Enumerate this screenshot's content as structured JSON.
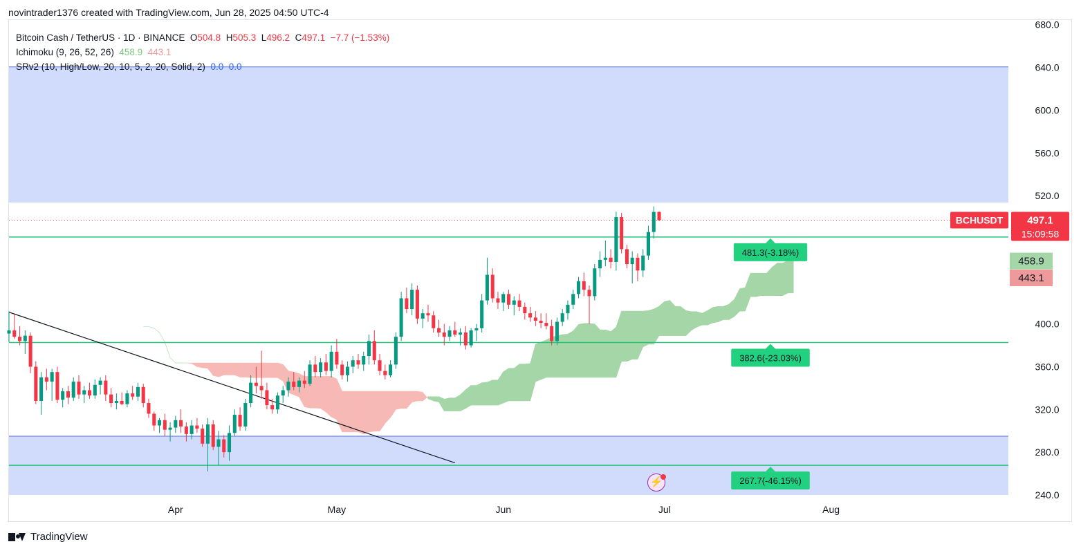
{
  "header": {
    "text": "novintrader1376 created with TradingView.com, Jun 28, 2025 04:50 UTC-4"
  },
  "legend": {
    "symbol": "Bitcoin Cash / TetherUS · 1D · BINANCE",
    "o_label": "O",
    "o": "504.8",
    "h_label": "H",
    "h": "505.3",
    "l_label": "L",
    "l": "496.2",
    "c_label": "C",
    "c": "497.1",
    "change": "−7.7 (−1.53%)",
    "ichimoku_name": "Ichimoku (9, 26, 52, 26)",
    "ichimoku_a": "458.9",
    "ichimoku_b": "443.1",
    "srv2_name": "SRv2 (10, High/Low, 20, 10, 5, 2, 20, Solid, 2)",
    "srv2_a": "0.0",
    "srv2_b": "0.0"
  },
  "footer": {
    "brand": "TradingView"
  },
  "colors": {
    "up": "#089981",
    "down": "#f23645",
    "zone": "#d1dcfd",
    "zone_line": "#5b73d6",
    "level": "#22c77a",
    "cloud_up": "#a5d6a7",
    "cloud_down": "#f7b9b5",
    "trend": "#131722"
  },
  "chart_data": {
    "type": "candlestick",
    "symbol_tag": "BCHUSDT",
    "last_price": "497.1",
    "countdown": "15:09:58",
    "ichimoku_tag_a": "458.9",
    "ichimoku_tag_b": "443.1",
    "ylim": [
      240,
      685
    ],
    "y_ticks": [
      "680.0",
      "640.0",
      "600.0",
      "560.0",
      "520.0",
      "400.0",
      "360.0",
      "320.0",
      "280.0",
      "240.0"
    ],
    "x_ticks": [
      {
        "label": "Apr",
        "date": "2025-04-01"
      },
      {
        "label": "May",
        "date": "2025-05-01"
      },
      {
        "label": "Jun",
        "date": "2025-06-01"
      },
      {
        "label": "Jul",
        "date": "2025-07-01"
      },
      {
        "label": "Aug",
        "date": "2025-08-01"
      }
    ],
    "x_range": [
      "2025-03-01",
      "2025-09-03"
    ],
    "zones": [
      {
        "from": 513.5,
        "to": 640.5
      },
      {
        "from": 240,
        "to": 295
      }
    ],
    "levels": [
      {
        "price": 481.3,
        "label": "481.3(-3.18%)"
      },
      {
        "price": 382.6,
        "label": "382.6(-23.03%)"
      },
      {
        "price": 267.7,
        "label": "267.7(-46.15%)"
      }
    ],
    "trendline": [
      {
        "date": "2025-03-01",
        "price": 411
      },
      {
        "date": "2025-05-23",
        "price": 270
      }
    ],
    "candles": [
      {
        "date": "2025-03-01",
        "o": 391,
        "h": 412,
        "l": 383,
        "c": 394
      },
      {
        "date": "2025-03-02",
        "o": 394,
        "h": 410,
        "l": 386,
        "c": 388
      },
      {
        "date": "2025-03-03",
        "o": 388,
        "h": 398,
        "l": 380,
        "c": 384
      },
      {
        "date": "2025-03-04",
        "o": 384,
        "h": 394,
        "l": 372,
        "c": 389
      },
      {
        "date": "2025-03-05",
        "o": 389,
        "h": 392,
        "l": 354,
        "c": 360
      },
      {
        "date": "2025-03-06",
        "o": 360,
        "h": 365,
        "l": 325,
        "c": 328
      },
      {
        "date": "2025-03-07",
        "o": 328,
        "h": 355,
        "l": 315,
        "c": 350
      },
      {
        "date": "2025-03-08",
        "o": 350,
        "h": 358,
        "l": 338,
        "c": 346
      },
      {
        "date": "2025-03-09",
        "o": 346,
        "h": 358,
        "l": 328,
        "c": 355
      },
      {
        "date": "2025-03-10",
        "o": 355,
        "h": 360,
        "l": 326,
        "c": 329
      },
      {
        "date": "2025-03-11",
        "o": 329,
        "h": 340,
        "l": 322,
        "c": 337
      },
      {
        "date": "2025-03-12",
        "o": 337,
        "h": 342,
        "l": 325,
        "c": 331
      },
      {
        "date": "2025-03-13",
        "o": 331,
        "h": 350,
        "l": 328,
        "c": 346
      },
      {
        "date": "2025-03-14",
        "o": 346,
        "h": 352,
        "l": 330,
        "c": 334
      },
      {
        "date": "2025-03-15",
        "o": 334,
        "h": 342,
        "l": 326,
        "c": 338
      },
      {
        "date": "2025-03-16",
        "o": 338,
        "h": 345,
        "l": 330,
        "c": 333
      },
      {
        "date": "2025-03-17",
        "o": 333,
        "h": 348,
        "l": 330,
        "c": 343
      },
      {
        "date": "2025-03-18",
        "o": 343,
        "h": 350,
        "l": 334,
        "c": 347
      },
      {
        "date": "2025-03-19",
        "o": 347,
        "h": 352,
        "l": 328,
        "c": 334
      },
      {
        "date": "2025-03-20",
        "o": 334,
        "h": 340,
        "l": 322,
        "c": 326
      },
      {
        "date": "2025-03-21",
        "o": 326,
        "h": 335,
        "l": 320,
        "c": 328
      },
      {
        "date": "2025-03-22",
        "o": 328,
        "h": 336,
        "l": 324,
        "c": 325
      },
      {
        "date": "2025-03-23",
        "o": 325,
        "h": 338,
        "l": 322,
        "c": 335
      },
      {
        "date": "2025-03-24",
        "o": 335,
        "h": 342,
        "l": 329,
        "c": 332
      },
      {
        "date": "2025-03-25",
        "o": 332,
        "h": 345,
        "l": 328,
        "c": 341
      },
      {
        "date": "2025-03-26",
        "o": 341,
        "h": 344,
        "l": 322,
        "c": 326
      },
      {
        "date": "2025-03-27",
        "o": 326,
        "h": 330,
        "l": 312,
        "c": 316
      },
      {
        "date": "2025-03-28",
        "o": 316,
        "h": 318,
        "l": 300,
        "c": 305
      },
      {
        "date": "2025-03-29",
        "o": 305,
        "h": 312,
        "l": 298,
        "c": 310
      },
      {
        "date": "2025-03-30",
        "o": 310,
        "h": 316,
        "l": 295,
        "c": 301
      },
      {
        "date": "2025-03-31",
        "o": 301,
        "h": 308,
        "l": 290,
        "c": 303
      },
      {
        "date": "2025-04-01",
        "o": 303,
        "h": 314,
        "l": 298,
        "c": 310
      },
      {
        "date": "2025-04-02",
        "o": 310,
        "h": 320,
        "l": 298,
        "c": 304
      },
      {
        "date": "2025-04-03",
        "o": 304,
        "h": 308,
        "l": 290,
        "c": 297
      },
      {
        "date": "2025-04-04",
        "o": 297,
        "h": 310,
        "l": 292,
        "c": 305
      },
      {
        "date": "2025-04-05",
        "o": 305,
        "h": 312,
        "l": 298,
        "c": 302
      },
      {
        "date": "2025-04-06",
        "o": 302,
        "h": 306,
        "l": 285,
        "c": 288
      },
      {
        "date": "2025-04-07",
        "o": 288,
        "h": 312,
        "l": 262,
        "c": 306
      },
      {
        "date": "2025-04-08",
        "o": 306,
        "h": 310,
        "l": 282,
        "c": 285
      },
      {
        "date": "2025-04-09",
        "o": 285,
        "h": 300,
        "l": 268,
        "c": 292
      },
      {
        "date": "2025-04-10",
        "o": 292,
        "h": 296,
        "l": 275,
        "c": 280
      },
      {
        "date": "2025-04-11",
        "o": 280,
        "h": 305,
        "l": 272,
        "c": 298
      },
      {
        "date": "2025-04-12",
        "o": 298,
        "h": 320,
        "l": 295,
        "c": 315
      },
      {
        "date": "2025-04-13",
        "o": 315,
        "h": 322,
        "l": 300,
        "c": 304
      },
      {
        "date": "2025-04-14",
        "o": 304,
        "h": 330,
        "l": 300,
        "c": 326
      },
      {
        "date": "2025-04-15",
        "o": 326,
        "h": 352,
        "l": 322,
        "c": 345
      },
      {
        "date": "2025-04-16",
        "o": 345,
        "h": 360,
        "l": 335,
        "c": 342
      },
      {
        "date": "2025-04-17",
        "o": 342,
        "h": 375,
        "l": 330,
        "c": 338
      },
      {
        "date": "2025-04-18",
        "o": 338,
        "h": 345,
        "l": 320,
        "c": 324
      },
      {
        "date": "2025-04-19",
        "o": 324,
        "h": 330,
        "l": 316,
        "c": 320
      },
      {
        "date": "2025-04-20",
        "o": 320,
        "h": 336,
        "l": 316,
        "c": 333
      },
      {
        "date": "2025-04-21",
        "o": 333,
        "h": 342,
        "l": 326,
        "c": 338
      },
      {
        "date": "2025-04-22",
        "o": 338,
        "h": 350,
        "l": 332,
        "c": 346
      },
      {
        "date": "2025-04-23",
        "o": 346,
        "h": 355,
        "l": 338,
        "c": 341
      },
      {
        "date": "2025-04-24",
        "o": 341,
        "h": 350,
        "l": 336,
        "c": 347
      },
      {
        "date": "2025-04-25",
        "o": 347,
        "h": 356,
        "l": 340,
        "c": 344
      },
      {
        "date": "2025-04-26",
        "o": 344,
        "h": 366,
        "l": 342,
        "c": 362
      },
      {
        "date": "2025-04-27",
        "o": 362,
        "h": 370,
        "l": 350,
        "c": 355
      },
      {
        "date": "2025-04-28",
        "o": 355,
        "h": 368,
        "l": 350,
        "c": 364
      },
      {
        "date": "2025-04-29",
        "o": 364,
        "h": 372,
        "l": 352,
        "c": 356
      },
      {
        "date": "2025-04-30",
        "o": 356,
        "h": 380,
        "l": 350,
        "c": 374
      },
      {
        "date": "2025-05-01",
        "o": 374,
        "h": 386,
        "l": 358,
        "c": 362
      },
      {
        "date": "2025-05-02",
        "o": 362,
        "h": 366,
        "l": 348,
        "c": 352
      },
      {
        "date": "2025-05-03",
        "o": 352,
        "h": 365,
        "l": 346,
        "c": 360
      },
      {
        "date": "2025-05-04",
        "o": 360,
        "h": 370,
        "l": 354,
        "c": 366
      },
      {
        "date": "2025-05-05",
        "o": 366,
        "h": 372,
        "l": 358,
        "c": 362
      },
      {
        "date": "2025-05-06",
        "o": 362,
        "h": 374,
        "l": 356,
        "c": 370
      },
      {
        "date": "2025-05-07",
        "o": 370,
        "h": 390,
        "l": 362,
        "c": 384
      },
      {
        "date": "2025-05-08",
        "o": 384,
        "h": 394,
        "l": 362,
        "c": 366
      },
      {
        "date": "2025-05-09",
        "o": 366,
        "h": 372,
        "l": 352,
        "c": 356
      },
      {
        "date": "2025-05-10",
        "o": 356,
        "h": 362,
        "l": 348,
        "c": 352
      },
      {
        "date": "2025-05-11",
        "o": 352,
        "h": 366,
        "l": 350,
        "c": 362
      },
      {
        "date": "2025-05-12",
        "o": 362,
        "h": 392,
        "l": 358,
        "c": 388
      },
      {
        "date": "2025-05-13",
        "o": 388,
        "h": 430,
        "l": 384,
        "c": 424
      },
      {
        "date": "2025-05-14",
        "o": 424,
        "h": 434,
        "l": 410,
        "c": 414
      },
      {
        "date": "2025-05-15",
        "o": 414,
        "h": 438,
        "l": 408,
        "c": 432
      },
      {
        "date": "2025-05-16",
        "o": 432,
        "h": 436,
        "l": 400,
        "c": 405
      },
      {
        "date": "2025-05-17",
        "o": 405,
        "h": 414,
        "l": 396,
        "c": 410
      },
      {
        "date": "2025-05-18",
        "o": 410,
        "h": 418,
        "l": 402,
        "c": 408
      },
      {
        "date": "2025-05-19",
        "o": 408,
        "h": 412,
        "l": 392,
        "c": 396
      },
      {
        "date": "2025-05-20",
        "o": 396,
        "h": 404,
        "l": 388,
        "c": 392
      },
      {
        "date": "2025-05-21",
        "o": 392,
        "h": 400,
        "l": 380,
        "c": 388
      },
      {
        "date": "2025-05-22",
        "o": 388,
        "h": 398,
        "l": 384,
        "c": 394
      },
      {
        "date": "2025-05-23",
        "o": 394,
        "h": 402,
        "l": 388,
        "c": 390
      },
      {
        "date": "2025-05-24",
        "o": 390,
        "h": 396,
        "l": 380,
        "c": 392
      },
      {
        "date": "2025-05-25",
        "o": 392,
        "h": 398,
        "l": 376,
        "c": 380
      },
      {
        "date": "2025-05-26",
        "o": 380,
        "h": 396,
        "l": 378,
        "c": 394
      },
      {
        "date": "2025-05-27",
        "o": 394,
        "h": 400,
        "l": 384,
        "c": 396
      },
      {
        "date": "2025-05-28",
        "o": 396,
        "h": 428,
        "l": 392,
        "c": 422
      },
      {
        "date": "2025-05-29",
        "o": 422,
        "h": 462,
        "l": 418,
        "c": 446
      },
      {
        "date": "2025-05-30",
        "o": 446,
        "h": 452,
        "l": 420,
        "c": 424
      },
      {
        "date": "2025-05-31",
        "o": 424,
        "h": 430,
        "l": 414,
        "c": 420
      },
      {
        "date": "2025-06-01",
        "o": 420,
        "h": 430,
        "l": 412,
        "c": 428
      },
      {
        "date": "2025-06-02",
        "o": 428,
        "h": 432,
        "l": 414,
        "c": 418
      },
      {
        "date": "2025-06-03",
        "o": 418,
        "h": 426,
        "l": 408,
        "c": 422
      },
      {
        "date": "2025-06-04",
        "o": 422,
        "h": 428,
        "l": 412,
        "c": 416
      },
      {
        "date": "2025-06-05",
        "o": 416,
        "h": 420,
        "l": 404,
        "c": 410
      },
      {
        "date": "2025-06-06",
        "o": 410,
        "h": 416,
        "l": 402,
        "c": 406
      },
      {
        "date": "2025-06-07",
        "o": 406,
        "h": 412,
        "l": 398,
        "c": 403
      },
      {
        "date": "2025-06-08",
        "o": 403,
        "h": 410,
        "l": 396,
        "c": 401
      },
      {
        "date": "2025-06-09",
        "o": 401,
        "h": 410,
        "l": 395,
        "c": 398
      },
      {
        "date": "2025-06-10",
        "o": 398,
        "h": 404,
        "l": 380,
        "c": 384
      },
      {
        "date": "2025-06-11",
        "o": 384,
        "h": 406,
        "l": 380,
        "c": 402
      },
      {
        "date": "2025-06-12",
        "o": 402,
        "h": 414,
        "l": 398,
        "c": 410
      },
      {
        "date": "2025-06-13",
        "o": 410,
        "h": 422,
        "l": 404,
        "c": 418
      },
      {
        "date": "2025-06-14",
        "o": 418,
        "h": 432,
        "l": 414,
        "c": 428
      },
      {
        "date": "2025-06-15",
        "o": 428,
        "h": 444,
        "l": 424,
        "c": 440
      },
      {
        "date": "2025-06-16",
        "o": 440,
        "h": 448,
        "l": 426,
        "c": 432
      },
      {
        "date": "2025-06-17",
        "o": 432,
        "h": 436,
        "l": 400,
        "c": 426
      },
      {
        "date": "2025-06-18",
        "o": 426,
        "h": 456,
        "l": 422,
        "c": 452
      },
      {
        "date": "2025-06-19",
        "o": 452,
        "h": 468,
        "l": 444,
        "c": 460
      },
      {
        "date": "2025-06-20",
        "o": 460,
        "h": 478,
        "l": 454,
        "c": 462
      },
      {
        "date": "2025-06-21",
        "o": 462,
        "h": 470,
        "l": 452,
        "c": 458
      },
      {
        "date": "2025-06-22",
        "o": 458,
        "h": 505,
        "l": 450,
        "c": 500
      },
      {
        "date": "2025-06-23",
        "o": 500,
        "h": 504,
        "l": 466,
        "c": 470
      },
      {
        "date": "2025-06-24",
        "o": 470,
        "h": 474,
        "l": 452,
        "c": 456
      },
      {
        "date": "2025-06-25",
        "o": 456,
        "h": 468,
        "l": 438,
        "c": 462
      },
      {
        "date": "2025-06-26",
        "o": 462,
        "h": 466,
        "l": 440,
        "c": 450
      },
      {
        "date": "2025-06-27",
        "o": 450,
        "h": 470,
        "l": 444,
        "c": 464
      },
      {
        "date": "2025-06-28",
        "o": 464,
        "h": 492,
        "l": 460,
        "c": 486
      },
      {
        "date": "2025-06-29",
        "o": 486,
        "h": 510,
        "l": 480,
        "c": 504.8
      },
      {
        "date": "2025-06-30",
        "o": 504.8,
        "h": 505.3,
        "l": 496.2,
        "c": 497.1
      }
    ]
  }
}
